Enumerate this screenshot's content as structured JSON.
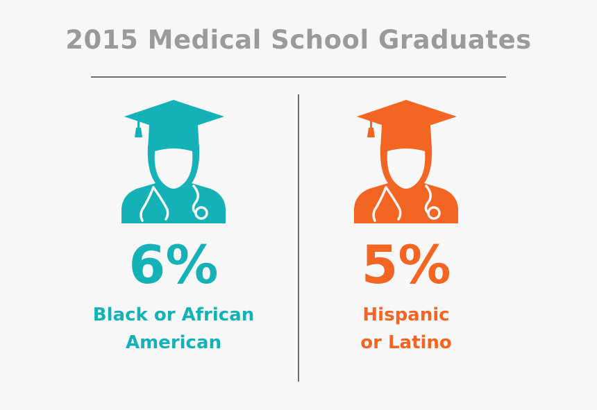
{
  "title": "2015 Medical School Graduates",
  "icon": "graduate-doctor-icon",
  "groups": [
    {
      "percent": "6%",
      "label_line1": "Black or African",
      "label_line2": "American",
      "color": "#14b1b7"
    },
    {
      "percent": "5%",
      "label_line1": "Hispanic",
      "label_line2": "or Latino",
      "color": "#f26522"
    }
  ]
}
